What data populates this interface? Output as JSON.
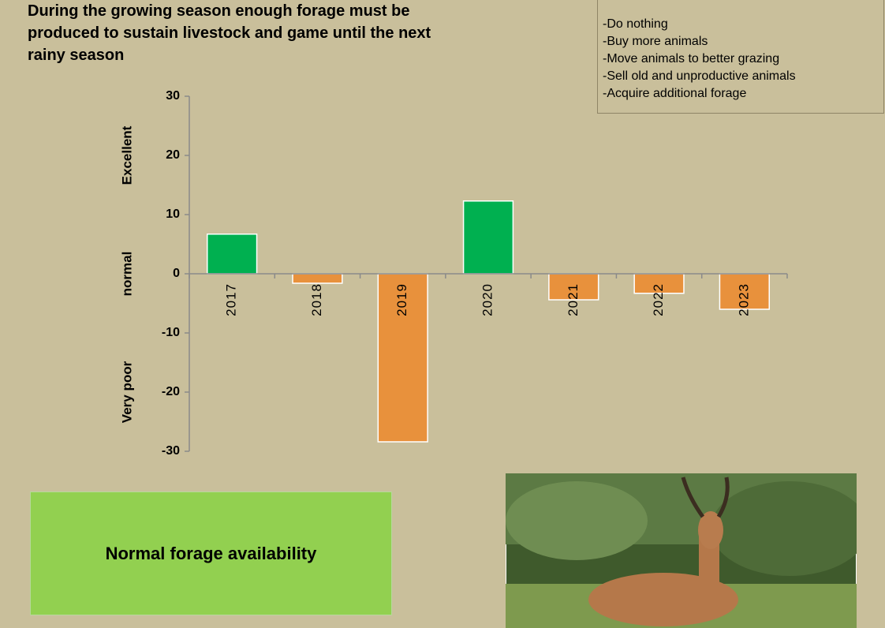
{
  "title_lines": [
    "During the growing season enough forage must be",
    "produced to sustain livestock and game until the next",
    "rainy season"
  ],
  "options": [
    "-Do nothing",
    "-Buy more animals",
    "-Move animals to better grazing",
    "-Sell old and unproductive animals",
    "-Acquire additional forage"
  ],
  "status": "Normal forage availability",
  "chart_data": {
    "type": "bar",
    "categories": [
      "2017",
      "2018",
      "2019",
      "2020",
      "2021",
      "2022",
      "2023"
    ],
    "values": [
      6.7,
      -1.6,
      -28.4,
      12.3,
      -4.4,
      -3.3,
      -6
    ],
    "positive_color": "#00b050",
    "negative_color": "#e8913c",
    "ylim": [
      -30,
      30
    ],
    "yticks": [
      -30,
      -20,
      -10,
      0,
      10,
      20,
      30
    ],
    "side_labels": [
      "Excellent",
      "normal",
      "Very poor"
    ]
  }
}
